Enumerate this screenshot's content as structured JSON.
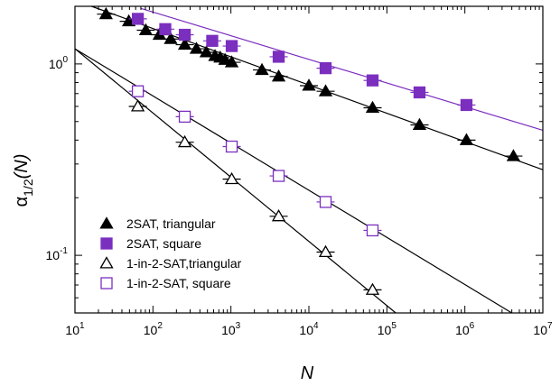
{
  "chart_data": {
    "type": "scatter",
    "x_scale": "log",
    "y_scale": "log",
    "xlim": [
      10,
      10000000
    ],
    "ylim": [
      0.05,
      2.0
    ],
    "xlabel": "N",
    "ylabel_main": "α",
    "ylabel_sub": "1/2",
    "ylabel_tail": "(N)",
    "x_ticks": [
      {
        "value": 10,
        "base": "10",
        "exp": "1"
      },
      {
        "value": 100,
        "base": "10",
        "exp": "2"
      },
      {
        "value": 1000,
        "base": "10",
        "exp": "3"
      },
      {
        "value": 10000,
        "base": "10",
        "exp": "4"
      },
      {
        "value": 100000,
        "base": "10",
        "exp": "5"
      },
      {
        "value": 1000000,
        "base": "10",
        "exp": "6"
      },
      {
        "value": 10000000,
        "base": "10",
        "exp": "7"
      }
    ],
    "y_ticks": [
      {
        "value": 0.1,
        "base": "10",
        "exp": "-1"
      },
      {
        "value": 1.0,
        "base": "10",
        "exp": "0"
      }
    ],
    "grid": false,
    "legend_position": "bottom-left",
    "series": [
      {
        "name": "2SAT, triangular",
        "marker": "triangle-filled",
        "color": "#000000",
        "x": [
          25,
          49,
          81,
          121,
          169,
          256,
          361,
          484,
          625,
          729,
          841,
          1024,
          2500,
          4096,
          10000,
          16384,
          65536,
          262144,
          1048576,
          4194304
        ],
        "y": [
          1.82,
          1.67,
          1.5,
          1.42,
          1.35,
          1.26,
          1.2,
          1.15,
          1.1,
          1.08,
          1.05,
          1.02,
          0.93,
          0.86,
          0.77,
          0.72,
          0.59,
          0.48,
          0.4,
          0.33
        ]
      },
      {
        "name": "2SAT, square",
        "marker": "square-filled",
        "color": "#7b2fbf",
        "x": [
          64,
          144,
          256,
          576,
          1024,
          4096,
          16384,
          65536,
          262144,
          1048576
        ],
        "y": [
          1.72,
          1.52,
          1.42,
          1.32,
          1.24,
          1.09,
          0.95,
          0.82,
          0.71,
          0.61
        ]
      },
      {
        "name": "1-in-2-SAT,triangular",
        "marker": "triangle-open",
        "color": "#000000",
        "x": [
          64,
          256,
          1024,
          4096,
          16384,
          65536
        ],
        "y": [
          0.6,
          0.39,
          0.25,
          0.16,
          0.104,
          0.066
        ]
      },
      {
        "name": "1-in-2-SAT, square",
        "marker": "square-open",
        "color": "#7b2fbf",
        "x": [
          64,
          256,
          1024,
          4096,
          16384,
          65536
        ],
        "y": [
          0.72,
          0.53,
          0.37,
          0.26,
          0.19,
          0.135
        ]
      }
    ],
    "fit_lines": [
      {
        "x": [
          10,
          10000000
        ],
        "y": [
          2.15,
          0.28
        ],
        "color": "#000000"
      },
      {
        "x": [
          70,
          10000000
        ],
        "y": [
          1.95,
          0.45
        ],
        "color": "#7b2fbf"
      },
      {
        "x": [
          10,
          130000
        ],
        "y": [
          1.2,
          0.05
        ],
        "color": "#000000"
      },
      {
        "x": [
          10,
          4000000
        ],
        "y": [
          1.2,
          0.05
        ],
        "color": "#000000"
      }
    ]
  }
}
